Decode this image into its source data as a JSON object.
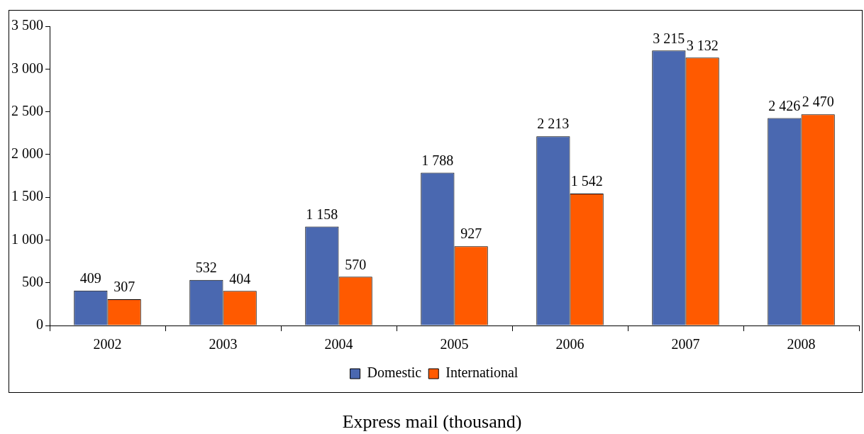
{
  "chart_data": {
    "type": "bar",
    "title": "Express mail (thousand)",
    "categories": [
      "2002",
      "2003",
      "2004",
      "2005",
      "2006",
      "2007",
      "2008"
    ],
    "series": [
      {
        "name": "Domestic",
        "color": "#4a68b0",
        "values": [
          409,
          532,
          1158,
          1788,
          2213,
          3215,
          2426
        ],
        "value_labels": [
          "409",
          "532",
          "1 158",
          "1 788",
          "2 213",
          "3 215",
          "2 426"
        ]
      },
      {
        "name": "International",
        "color": "#ff5a00",
        "values": [
          307,
          404,
          570,
          927,
          1542,
          3132,
          2470
        ],
        "value_labels": [
          "307",
          "404",
          "570",
          "927",
          "1 542",
          "3 132",
          "2 470"
        ]
      }
    ],
    "ylim": [
      0,
      3500
    ],
    "yticks": [
      0,
      500,
      {
        "value": 1000,
        "label": "1 000"
      },
      {
        "value": 1500,
        "label": "1 500"
      },
      {
        "value": 2000,
        "label": "2 000"
      },
      {
        "value": 2500,
        "label": "2 500"
      },
      {
        "value": 3000,
        "label": "3 000"
      },
      {
        "value": 3500,
        "label": "3 500"
      }
    ],
    "grid": false,
    "legend": "bottom"
  }
}
